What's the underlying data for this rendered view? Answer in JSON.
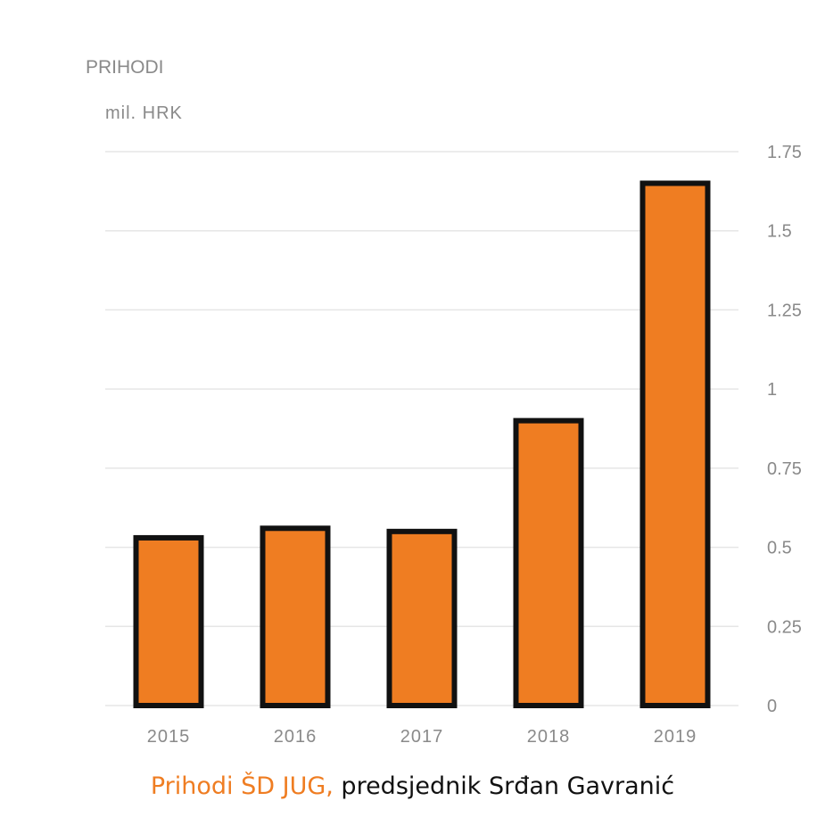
{
  "chart_data": {
    "type": "bar",
    "title": "PRIHODI",
    "unit_label": "mil. HRK",
    "categories": [
      "2015",
      "2016",
      "2017",
      "2018",
      "2019"
    ],
    "values": [
      0.53,
      0.56,
      0.55,
      0.9,
      1.65
    ],
    "ylim": [
      0,
      1.75
    ],
    "yticks": [
      0,
      0.25,
      0.5,
      0.75,
      1,
      1.25,
      1.5,
      1.75
    ],
    "ytick_labels": [
      "0",
      "0.25",
      "0.5",
      "0.75",
      "1",
      "1.25",
      "1.5",
      "1.75"
    ],
    "y_axis_side": "right",
    "grid": true,
    "bar_color": "#ef7d22",
    "bar_outline_color": "#111111"
  },
  "caption": {
    "highlight": "Prihodi ŠD JUG,",
    "rest": " predsjednik Srđan Gavranić",
    "highlight_color": "#ef7d22"
  }
}
